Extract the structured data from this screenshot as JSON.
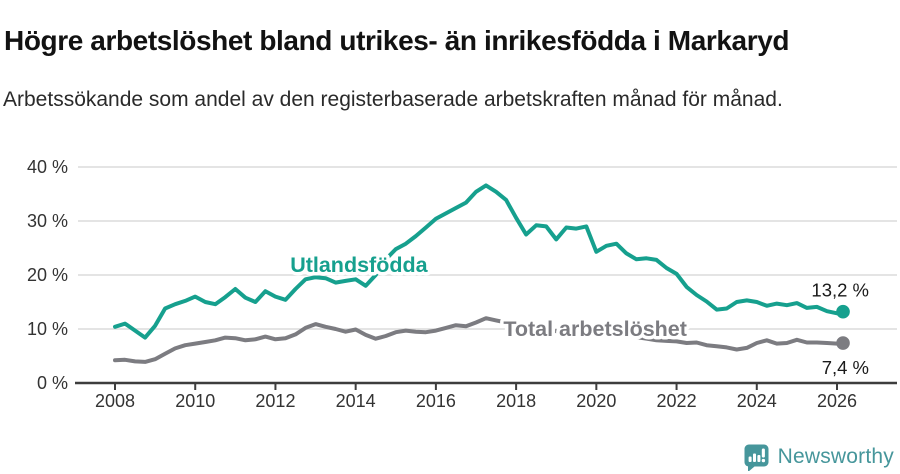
{
  "header": {
    "title": "Högre arbetslöshet bland utrikes- än inrikesfödda i Markaryd",
    "subtitle": "Arbetssökande som andel av den registerbaserade arbetskraften månad för månad."
  },
  "footer": {
    "brand": "Newsworthy",
    "brand_color": "#46969b",
    "logo_icon": "bar-chart-speech-bubble-icon"
  },
  "colors": {
    "series_utlandsfodda": "#16a08e",
    "series_total": "#7c7c81",
    "gridline": "#dcdcdc",
    "axis": "#3d3d3d",
    "tick_text": "#333333",
    "annotation_text": "#1a1a1a"
  },
  "chart_data": {
    "type": "line",
    "title": "",
    "xlabel": "",
    "ylabel": "",
    "x_unit": "decimal year (monthly series, Jan 2008 – Feb 2026)",
    "y_unit": "percent of registered labour force",
    "xlim": [
      2007.1,
      2027.5
    ],
    "ylim": [
      0,
      42
    ],
    "grid": "horizontal",
    "x_ticks": [
      2008,
      2010,
      2012,
      2014,
      2016,
      2018,
      2020,
      2022,
      2024,
      2026
    ],
    "x_tick_labels": [
      "2008",
      "2010",
      "2012",
      "2014",
      "2016",
      "2018",
      "2020",
      "2022",
      "2024",
      "2026"
    ],
    "y_ticks": [
      0,
      10,
      20,
      30,
      40
    ],
    "y_tick_labels": [
      "0 %",
      "10 %",
      "20 %",
      "30 %",
      "40 %"
    ],
    "legend_position": "inline-labels",
    "series": [
      {
        "name": "Total arbetslöshet",
        "color": "#7c7c81",
        "end_value": 7.4,
        "end_label": "7,4 %",
        "label_pos": {
          "year": 2019.97,
          "value": 8.7
        },
        "points": [
          [
            2008.0,
            4.2
          ],
          [
            2008.25,
            4.3
          ],
          [
            2008.5,
            4.0
          ],
          [
            2008.75,
            3.9
          ],
          [
            2009.0,
            4.4
          ],
          [
            2009.25,
            5.4
          ],
          [
            2009.5,
            6.4
          ],
          [
            2009.75,
            7.0
          ],
          [
            2010.0,
            7.3
          ],
          [
            2010.25,
            7.6
          ],
          [
            2010.5,
            7.9
          ],
          [
            2010.75,
            8.4
          ],
          [
            2011.0,
            8.3
          ],
          [
            2011.25,
            7.9
          ],
          [
            2011.5,
            8.1
          ],
          [
            2011.75,
            8.6
          ],
          [
            2012.0,
            8.1
          ],
          [
            2012.25,
            8.3
          ],
          [
            2012.5,
            9.0
          ],
          [
            2012.75,
            10.2
          ],
          [
            2013.0,
            10.9
          ],
          [
            2013.25,
            10.4
          ],
          [
            2013.5,
            10.0
          ],
          [
            2013.75,
            9.5
          ],
          [
            2014.0,
            9.9
          ],
          [
            2014.25,
            8.9
          ],
          [
            2014.5,
            8.2
          ],
          [
            2014.75,
            8.7
          ],
          [
            2015.0,
            9.4
          ],
          [
            2015.25,
            9.7
          ],
          [
            2015.5,
            9.5
          ],
          [
            2015.75,
            9.4
          ],
          [
            2016.0,
            9.7
          ],
          [
            2016.25,
            10.2
          ],
          [
            2016.5,
            10.7
          ],
          [
            2016.75,
            10.5
          ],
          [
            2017.0,
            11.2
          ],
          [
            2017.25,
            12.0
          ],
          [
            2017.5,
            11.6
          ],
          [
            2017.75,
            11.2
          ],
          [
            2018.0,
            10.8
          ],
          [
            2018.25,
            10.4
          ],
          [
            2018.5,
            10.1
          ],
          [
            2018.75,
            9.9
          ],
          [
            2019.0,
            9.6
          ],
          [
            2019.25,
            9.4
          ],
          [
            2019.5,
            9.2
          ],
          [
            2019.75,
            9.1
          ],
          [
            2020.0,
            9.4
          ],
          [
            2020.25,
            9.6
          ],
          [
            2020.5,
            9.3
          ],
          [
            2020.75,
            8.9
          ],
          [
            2021.0,
            8.5
          ],
          [
            2021.25,
            8.2
          ],
          [
            2021.5,
            7.9
          ],
          [
            2021.75,
            7.8
          ],
          [
            2022.0,
            7.7
          ],
          [
            2022.25,
            7.4
          ],
          [
            2022.5,
            7.5
          ],
          [
            2022.75,
            7.0
          ],
          [
            2023.0,
            6.8
          ],
          [
            2023.25,
            6.6
          ],
          [
            2023.5,
            6.2
          ],
          [
            2023.75,
            6.5
          ],
          [
            2024.0,
            7.4
          ],
          [
            2024.25,
            7.9
          ],
          [
            2024.5,
            7.3
          ],
          [
            2024.75,
            7.4
          ],
          [
            2025.0,
            8.0
          ],
          [
            2025.25,
            7.5
          ],
          [
            2025.5,
            7.5
          ],
          [
            2025.75,
            7.4
          ],
          [
            2026.0,
            7.3
          ],
          [
            2026.15,
            7.4
          ]
        ]
      },
      {
        "name": "Utlandsfödda",
        "color": "#16a08e",
        "end_value": 13.2,
        "end_label": "13,2 %",
        "label_pos": {
          "year": 2014.08,
          "value": 20.6
        },
        "points": [
          [
            2008.0,
            10.4
          ],
          [
            2008.25,
            11.0
          ],
          [
            2008.5,
            9.7
          ],
          [
            2008.75,
            8.4
          ],
          [
            2009.0,
            10.6
          ],
          [
            2009.25,
            13.8
          ],
          [
            2009.5,
            14.6
          ],
          [
            2009.75,
            15.2
          ],
          [
            2010.0,
            16.0
          ],
          [
            2010.25,
            15.0
          ],
          [
            2010.5,
            14.6
          ],
          [
            2010.75,
            15.9
          ],
          [
            2011.0,
            17.4
          ],
          [
            2011.25,
            15.8
          ],
          [
            2011.5,
            15.0
          ],
          [
            2011.75,
            17.0
          ],
          [
            2012.0,
            16.0
          ],
          [
            2012.25,
            15.4
          ],
          [
            2012.5,
            17.4
          ],
          [
            2012.75,
            19.2
          ],
          [
            2013.0,
            19.6
          ],
          [
            2013.25,
            19.4
          ],
          [
            2013.5,
            18.6
          ],
          [
            2013.75,
            18.9
          ],
          [
            2014.0,
            19.2
          ],
          [
            2014.25,
            18.0
          ],
          [
            2014.5,
            20.0
          ],
          [
            2014.75,
            22.9
          ],
          [
            2015.0,
            24.8
          ],
          [
            2015.25,
            25.8
          ],
          [
            2015.5,
            27.2
          ],
          [
            2015.75,
            28.8
          ],
          [
            2016.0,
            30.4
          ],
          [
            2016.25,
            31.4
          ],
          [
            2016.5,
            32.4
          ],
          [
            2016.75,
            33.4
          ],
          [
            2017.0,
            35.4
          ],
          [
            2017.25,
            36.6
          ],
          [
            2017.5,
            35.4
          ],
          [
            2017.75,
            33.9
          ],
          [
            2018.0,
            30.6
          ],
          [
            2018.25,
            27.5
          ],
          [
            2018.5,
            29.2
          ],
          [
            2018.75,
            29.0
          ],
          [
            2019.0,
            26.6
          ],
          [
            2019.25,
            28.8
          ],
          [
            2019.5,
            28.6
          ],
          [
            2019.75,
            29.0
          ],
          [
            2020.0,
            24.3
          ],
          [
            2020.25,
            25.4
          ],
          [
            2020.5,
            25.8
          ],
          [
            2020.75,
            24.0
          ],
          [
            2021.0,
            22.9
          ],
          [
            2021.25,
            23.1
          ],
          [
            2021.5,
            22.8
          ],
          [
            2021.75,
            21.3
          ],
          [
            2022.0,
            20.2
          ],
          [
            2022.25,
            17.8
          ],
          [
            2022.5,
            16.3
          ],
          [
            2022.75,
            15.1
          ],
          [
            2023.0,
            13.6
          ],
          [
            2023.25,
            13.8
          ],
          [
            2023.5,
            15.0
          ],
          [
            2023.75,
            15.3
          ],
          [
            2024.0,
            15.0
          ],
          [
            2024.25,
            14.3
          ],
          [
            2024.5,
            14.7
          ],
          [
            2024.75,
            14.4
          ],
          [
            2025.0,
            14.8
          ],
          [
            2025.25,
            13.9
          ],
          [
            2025.5,
            14.1
          ],
          [
            2025.75,
            13.3
          ],
          [
            2026.0,
            12.9
          ],
          [
            2026.15,
            13.2
          ]
        ]
      }
    ]
  }
}
